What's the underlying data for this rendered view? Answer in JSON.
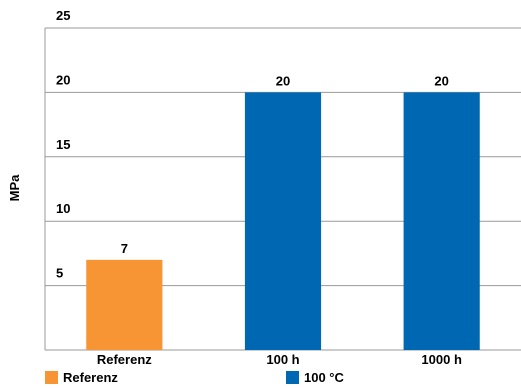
{
  "chart_data": {
    "type": "bar",
    "ylabel": "MPa",
    "xlabel": "",
    "ylim": [
      0,
      25
    ],
    "yticks": [
      5,
      10,
      15,
      20,
      25
    ],
    "grid": true,
    "legend_position": "bottom",
    "categories": [
      "Referenz",
      "100 h",
      "1000 h"
    ],
    "values": [
      7,
      20,
      20
    ],
    "bar_series": [
      "Referenz",
      "100 °C",
      "100 °C"
    ],
    "series": [
      {
        "name": "Referenz",
        "color": "#f79433"
      },
      {
        "name": "100 °C",
        "color": "#0068b3"
      }
    ]
  }
}
